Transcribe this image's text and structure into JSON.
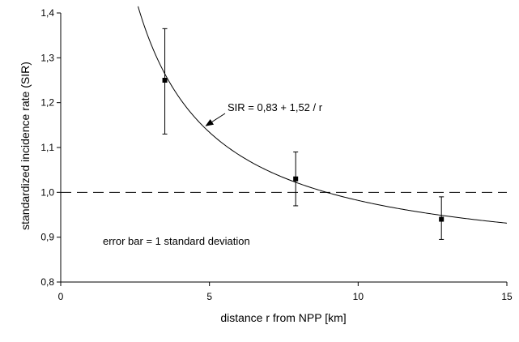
{
  "chart_data": {
    "type": "scatter",
    "title": "",
    "xlabel": "distance r from NPP [km]",
    "ylabel": "standardized incidence rate (SIR)",
    "xlim": [
      0,
      15
    ],
    "ylim": [
      0.8,
      1.4
    ],
    "x_ticks": [
      0,
      5,
      10,
      15
    ],
    "x_tick_labels": [
      "0",
      "5",
      "10",
      "15"
    ],
    "y_ticks": [
      0.8,
      0.9,
      1.0,
      1.1,
      1.2,
      1.3,
      1.4
    ],
    "y_tick_labels": [
      "0,8",
      "0,9",
      "1,0",
      "1,1",
      "1,2",
      "1,3",
      "1,4"
    ],
    "grid": false,
    "points": [
      {
        "x": 3.5,
        "y": 1.25,
        "err_low": 1.13,
        "err_high": 1.365
      },
      {
        "x": 7.9,
        "y": 1.03,
        "err_low": 0.97,
        "err_high": 1.09
      },
      {
        "x": 12.8,
        "y": 0.94,
        "err_low": 0.895,
        "err_high": 0.99
      }
    ],
    "fit": {
      "label": "SIR = 0,83 + 1,52 / r",
      "a": 0.83,
      "b": 1.52,
      "x_start": 2.6,
      "x_end": 15
    },
    "reference_line": {
      "y": 1.0,
      "style": "dashed"
    },
    "annotations": [
      {
        "text": "SIR = 0,83 + 1,52 / r",
        "points_to_x": 4.8
      },
      {
        "text": "error bar = 1 standard deviation"
      }
    ]
  }
}
